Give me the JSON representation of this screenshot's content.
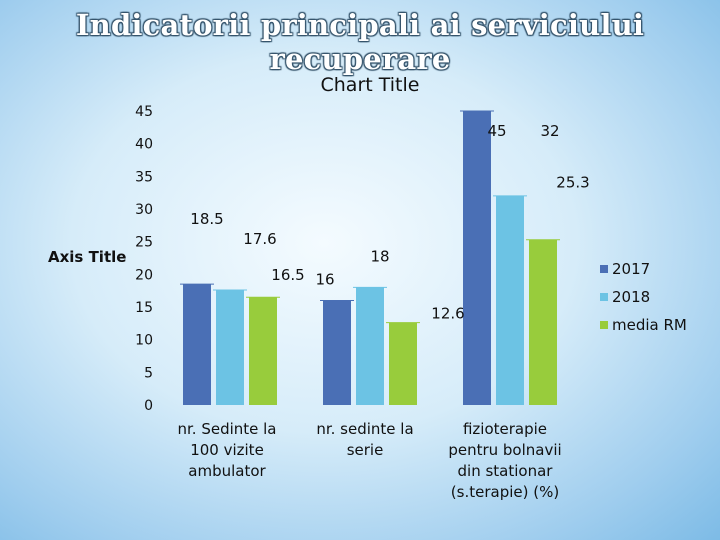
{
  "slide": {
    "title": "Indicatorii principali ai serviciului recuperare"
  },
  "colors": {
    "2017": "#4a6fb5",
    "2018": "#6cc3e4",
    "media RM": "#98cc3c"
  },
  "chart_data": {
    "type": "bar",
    "title": "Chart Title",
    "xlabel": "",
    "ylabel": "Axis Title",
    "ylim": [
      0,
      45
    ],
    "yticks": [
      "0",
      "5",
      "10",
      "15",
      "20",
      "25",
      "30",
      "35",
      "40",
      "45"
    ],
    "grid": false,
    "legend_position": "right",
    "categories": [
      "nr. Sedinte la 100 vizite ambulator",
      "nr. sedinte la serie",
      "fizioterapie pentru bolnavii din stationar (s.terapie) (%)"
    ],
    "series": [
      {
        "name": "2017",
        "values": [
          18.5,
          16,
          45
        ],
        "labels": [
          "18.5",
          "16",
          "45"
        ]
      },
      {
        "name": "2018",
        "values": [
          17.6,
          18,
          32
        ],
        "labels": [
          "17.6",
          "18",
          "32"
        ]
      },
      {
        "name": "media RM",
        "values": [
          16.5,
          12.6,
          25.3
        ],
        "labels": [
          "16.5",
          "12.6",
          "25.3"
        ]
      }
    ]
  }
}
